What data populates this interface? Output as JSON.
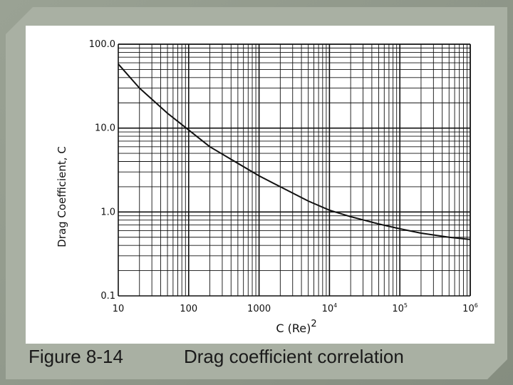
{
  "caption": {
    "figure_number": "Figure 8-14",
    "title": "Drag coefficient correlation"
  },
  "chart_data": {
    "type": "line",
    "title": "",
    "xlabel": "C (Re)",
    "xlabel_superscript": "2",
    "ylabel": "Drag Coefficient, C",
    "x_scale": "log",
    "y_scale": "log",
    "xlim": [
      10,
      1000000
    ],
    "ylim": [
      0.1,
      100
    ],
    "grid": true,
    "legend": "none",
    "x_ticks": [
      {
        "value": 10,
        "label": "10"
      },
      {
        "value": 100,
        "label": "100"
      },
      {
        "value": 1000,
        "label": "1000"
      },
      {
        "value": 10000,
        "label": "10",
        "exp": "4"
      },
      {
        "value": 100000,
        "label": "10",
        "exp": "5"
      },
      {
        "value": 1000000,
        "label": "10",
        "exp": "6"
      }
    ],
    "y_ticks": [
      {
        "value": 0.1,
        "label": "0.1"
      },
      {
        "value": 1,
        "label": "1.0"
      },
      {
        "value": 10,
        "label": "10.0"
      },
      {
        "value": 100,
        "label": "100.0"
      }
    ],
    "series": [
      {
        "x": [
          10,
          20,
          50,
          100,
          200,
          500,
          1000,
          2000,
          5000,
          10000,
          20000,
          50000,
          100000,
          200000,
          500000,
          1000000
        ],
        "y": [
          58,
          30,
          15,
          9.5,
          6.0,
          3.8,
          2.7,
          2.0,
          1.35,
          1.05,
          0.88,
          0.72,
          0.63,
          0.56,
          0.5,
          0.47
        ]
      }
    ],
    "colors": {
      "line": "#111111",
      "grid": "#111111",
      "text": "#111111"
    }
  }
}
